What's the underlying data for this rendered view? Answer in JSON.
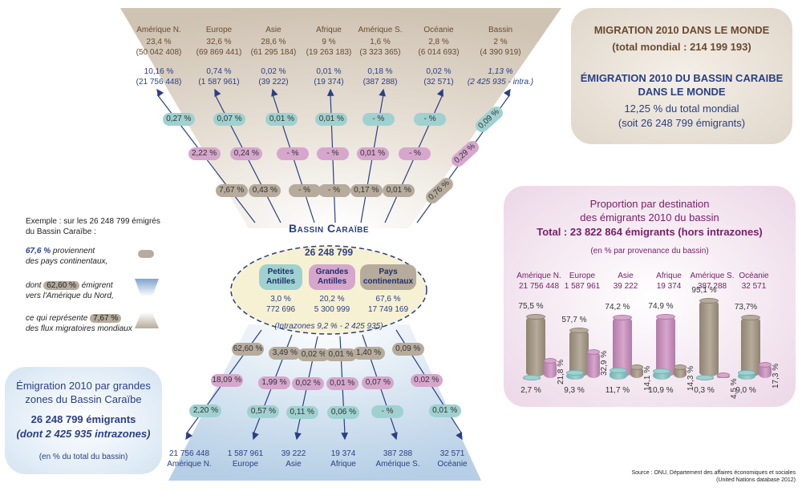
{
  "top_panel": {
    "title": "MIGRATION 2010 DANS LE MONDE",
    "subtitle": "(total mondial : 214 199 193)",
    "emig_title_1": "ÉMIGRATION 2010  DU BASSIN CARAIBE",
    "emig_title_2": "DANS LE MONDE",
    "emig_pct": "12,25 % du total mondial",
    "emig_count": "(soit 26 248 799 émigrants)"
  },
  "world_columns": [
    {
      "name": "Amérique N.",
      "pct": "23,4 %",
      "count": "(50 042 408)",
      "carib_pct": "10,16 %",
      "carib_count": "(21 756 448)"
    },
    {
      "name": "Europe",
      "pct": "32,6 %",
      "count": "(69 869 441)",
      "carib_pct": "0,74 %",
      "carib_count": "(1 587 961)"
    },
    {
      "name": "Asie",
      "pct": "28,6 %",
      "count": "(61 295 184)",
      "carib_pct": "0,02 %",
      "carib_count": "(39 222)"
    },
    {
      "name": "Afrique",
      "pct": "9 %",
      "count": "(19 263 183)",
      "carib_pct": "0,01 %",
      "carib_count": "(19 374)"
    },
    {
      "name": "Amérique S.",
      "pct": "1,6 %",
      "count": "(3 323 365)",
      "carib_pct": "0,18 %",
      "carib_count": "(387 288)"
    },
    {
      "name": "Océanie",
      "pct": "2,8 %",
      "count": "(6 014 693)",
      "carib_pct": "0,02 %",
      "carib_count": "(32 571)"
    },
    {
      "name": "Bassin",
      "pct": "2 %",
      "count": "(4 390 919)",
      "carib_pct": "1,13 %",
      "carib_count": "(2 425 935 - intra.)"
    }
  ],
  "upper_pills": [
    {
      "text": "0,27 %",
      "color": "tl"
    },
    {
      "text": "2,22 %",
      "color": "pk"
    },
    {
      "text": "7,67 %",
      "color": "br"
    },
    {
      "text": "0,07 %",
      "color": "tl"
    },
    {
      "text": "0,24 %",
      "color": "pk"
    },
    {
      "text": "0,43 %",
      "color": "br"
    },
    {
      "text": "0,01 %",
      "color": "tl"
    },
    {
      "text": "- %",
      "color": "pk"
    },
    {
      "text": "- %",
      "color": "br"
    },
    {
      "text": "0,01 %",
      "color": "tl"
    },
    {
      "text": "- %",
      "color": "pk"
    },
    {
      "text": "- %",
      "color": "br"
    },
    {
      "text": "- %",
      "color": "tl"
    },
    {
      "text": "0,01 %",
      "color": "pk"
    },
    {
      "text": "0,17 %",
      "color": "br"
    },
    {
      "text": "- %",
      "color": "tl"
    },
    {
      "text": "- %",
      "color": "pk"
    },
    {
      "text": "0,01 %",
      "color": "br"
    },
    {
      "text": "0,09 %",
      "color": "tl"
    },
    {
      "text": "0,29 %",
      "color": "pk"
    },
    {
      "text": "0,76 %",
      "color": "br"
    }
  ],
  "center": {
    "title": "Bassin Caraïbe",
    "total": "26 248 799",
    "groups": [
      {
        "label_1": "Petites",
        "label_2": "Antilles",
        "pct": "3,0 %",
        "count": "772 696",
        "color": "tl"
      },
      {
        "label_1": "Grandes",
        "label_2": "Antilles",
        "pct": "20,2 %",
        "count": "5 300 999",
        "color": "pk"
      },
      {
        "label_1": "Pays",
        "label_2": "continentaux",
        "pct": "67,6 %",
        "count": "17 749 169",
        "color": "br"
      }
    ],
    "intra": "(Intrazones 9,2 % - 2 425 935)"
  },
  "legend": {
    "intro_1": "Exemple : sur les 26 248 799 émigrés",
    "intro_2": "du Bassin Caraïbe :",
    "item1_pct": "67,6 %",
    "item1_a": "proviennent",
    "item1_b": "des pays continentaux,",
    "item2_a": "dont",
    "item2_pct": "62,60 %",
    "item2_b": "émigrent",
    "item2_c": "vers l'Amérique du Nord,",
    "item3_a": "ce qui représente",
    "item3_pct": "7,67 %",
    "item3_b": "des flux migratoires mondiaux"
  },
  "lower_pills": [
    {
      "text": "62,60 %",
      "color": "br"
    },
    {
      "text": "18,09 %",
      "color": "pk"
    },
    {
      "text": "2,20 %",
      "color": "tl"
    },
    {
      "text": "3,49 %",
      "color": "br"
    },
    {
      "text": "1,99 %",
      "color": "pk"
    },
    {
      "text": "0,57 %",
      "color": "tl"
    },
    {
      "text": "0,02 %",
      "color": "br"
    },
    {
      "text": "0,02 %",
      "color": "pk"
    },
    {
      "text": "0,11 %",
      "color": "tl"
    },
    {
      "text": "0,01 %",
      "color": "br"
    },
    {
      "text": "0,01 %",
      "color": "pk"
    },
    {
      "text": "0,06 %",
      "color": "tl"
    },
    {
      "text": "1,40 %",
      "color": "br"
    },
    {
      "text": "0,07 %",
      "color": "pk"
    },
    {
      "text": "- %",
      "color": "tl"
    },
    {
      "text": "0,09 %",
      "color": "br"
    },
    {
      "text": "0,02 %",
      "color": "pk"
    },
    {
      "text": "0,01 %",
      "color": "tl"
    }
  ],
  "lower_destinations": [
    {
      "count": "21 756 448",
      "name": "Amérique N."
    },
    {
      "count": "1 587 961",
      "name": "Europe"
    },
    {
      "count": "39 222",
      "name": "Asie"
    },
    {
      "count": "19 374",
      "name": "Afrique"
    },
    {
      "count": "387 288",
      "name": "Amérique S."
    },
    {
      "count": "32 571",
      "name": "Océanie"
    }
  ],
  "bottom_left_panel": {
    "title_1": "Émigration 2010 par grandes",
    "title_2": "zones du Bassin Caraïbe",
    "count": "26 248 799 émigrants",
    "intra": "(dont 2 425 935 intrazones)",
    "note": "(en % du total du bassin)"
  },
  "proportion_panel": {
    "title_1": "Proportion par destination",
    "title_2": "des émigrants 2010 du bassin",
    "total": "Total : 23 822 864 émigrants (hors intrazones)",
    "note": "(en % par provenance du bassin)"
  },
  "chart_data": {
    "type": "bar",
    "categories": [
      "Amérique N.",
      "Europe",
      "Asie",
      "Afrique",
      "Amérique S.",
      "Océanie"
    ],
    "category_counts": [
      "21 756 448",
      "1 587 961",
      "39 222",
      "19 374",
      "387 288",
      "32 571"
    ],
    "series": [
      {
        "values": [
          75.5,
          57.7,
          14.1,
          14.3,
          95.1,
          73.7
        ],
        "labels": [
          "75,5 %",
          "57,7 %",
          "14,1 %",
          "14,3 %",
          "95,1 %",
          "73,7%"
        ]
      },
      {
        "values": [
          21.8,
          32.9,
          74.2,
          74.9,
          4.5,
          17.3
        ],
        "labels": [
          "21,8 %",
          "32,9 %",
          "74,2 %",
          "74,9 %",
          "4,5 %",
          "17,3 %"
        ]
      },
      {
        "values": [
          2.7,
          9.3,
          11.7,
          10.9,
          0.3,
          9.0
        ],
        "labels": [
          "2,7 %",
          "9,3 %",
          "11,7 %",
          "10,9 %",
          "0,3 %",
          "9,0 %"
        ]
      }
    ],
    "ylim": [
      0,
      100
    ]
  },
  "colors": {
    "brown": "#b6ab9c",
    "pink": "#d6a6cd",
    "teal": "#9fd1d0",
    "navy": "#2a3f86"
  },
  "source_1": "Source : ONU, Département des affaires économiques et sociales",
  "source_2": "(United Nations database 2012)"
}
